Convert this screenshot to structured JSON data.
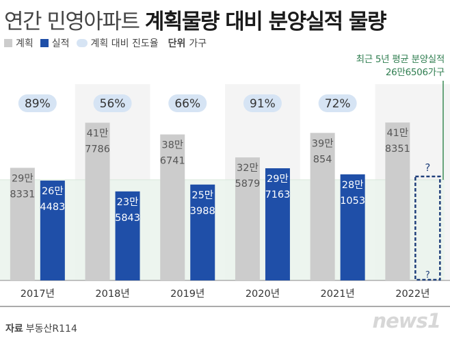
{
  "header": {
    "title_light": "연간 민영아파트",
    "title_bold": "계획물량 대비 분양실적 물량"
  },
  "legend": {
    "plan_label": "계획",
    "actual_label": "실적",
    "rate_label": "계획 대비 진도율",
    "unit_key": "단위",
    "unit_value": "가구"
  },
  "average_note": {
    "line1": "최근 5년 평균 분양실적",
    "line2": "26만6506가구"
  },
  "colors": {
    "plan": "#cccccc",
    "actual": "#1f4fa8",
    "rate_bubble": "#d6e4f4",
    "average_band": "#eaf3ec",
    "average_line": "#3a8a55"
  },
  "chart_data": {
    "type": "bar",
    "categories": [
      "2017년",
      "2018년",
      "2019년",
      "2020년",
      "2021년",
      "2022년"
    ],
    "series": [
      {
        "name": "계획",
        "values": [
          298331,
          417786,
          386741,
          325879,
          390854,
          418351
        ],
        "labels": [
          [
            "29만",
            "8331"
          ],
          [
            "41만",
            "7786"
          ],
          [
            "38만",
            "6741"
          ],
          [
            "32만",
            "5879"
          ],
          [
            "39만",
            "854"
          ],
          [
            "41만",
            "8351"
          ]
        ]
      },
      {
        "name": "실적",
        "values": [
          264483,
          235843,
          253988,
          297163,
          281053,
          null
        ],
        "labels": [
          [
            "26만",
            "4483"
          ],
          [
            "23만",
            "5843"
          ],
          [
            "25만",
            "3988"
          ],
          [
            "29만",
            "7163"
          ],
          [
            "28만",
            "1053"
          ],
          [
            "?"
          ]
        ]
      }
    ],
    "progress_rates": [
      "89%",
      "56%",
      "66%",
      "91%",
      "72%",
      ""
    ],
    "average": 266506,
    "ylim": [
      0,
      520000
    ]
  },
  "footer": {
    "source_key": "자료",
    "source_value": "부동산R114",
    "logo_text": "news1"
  }
}
